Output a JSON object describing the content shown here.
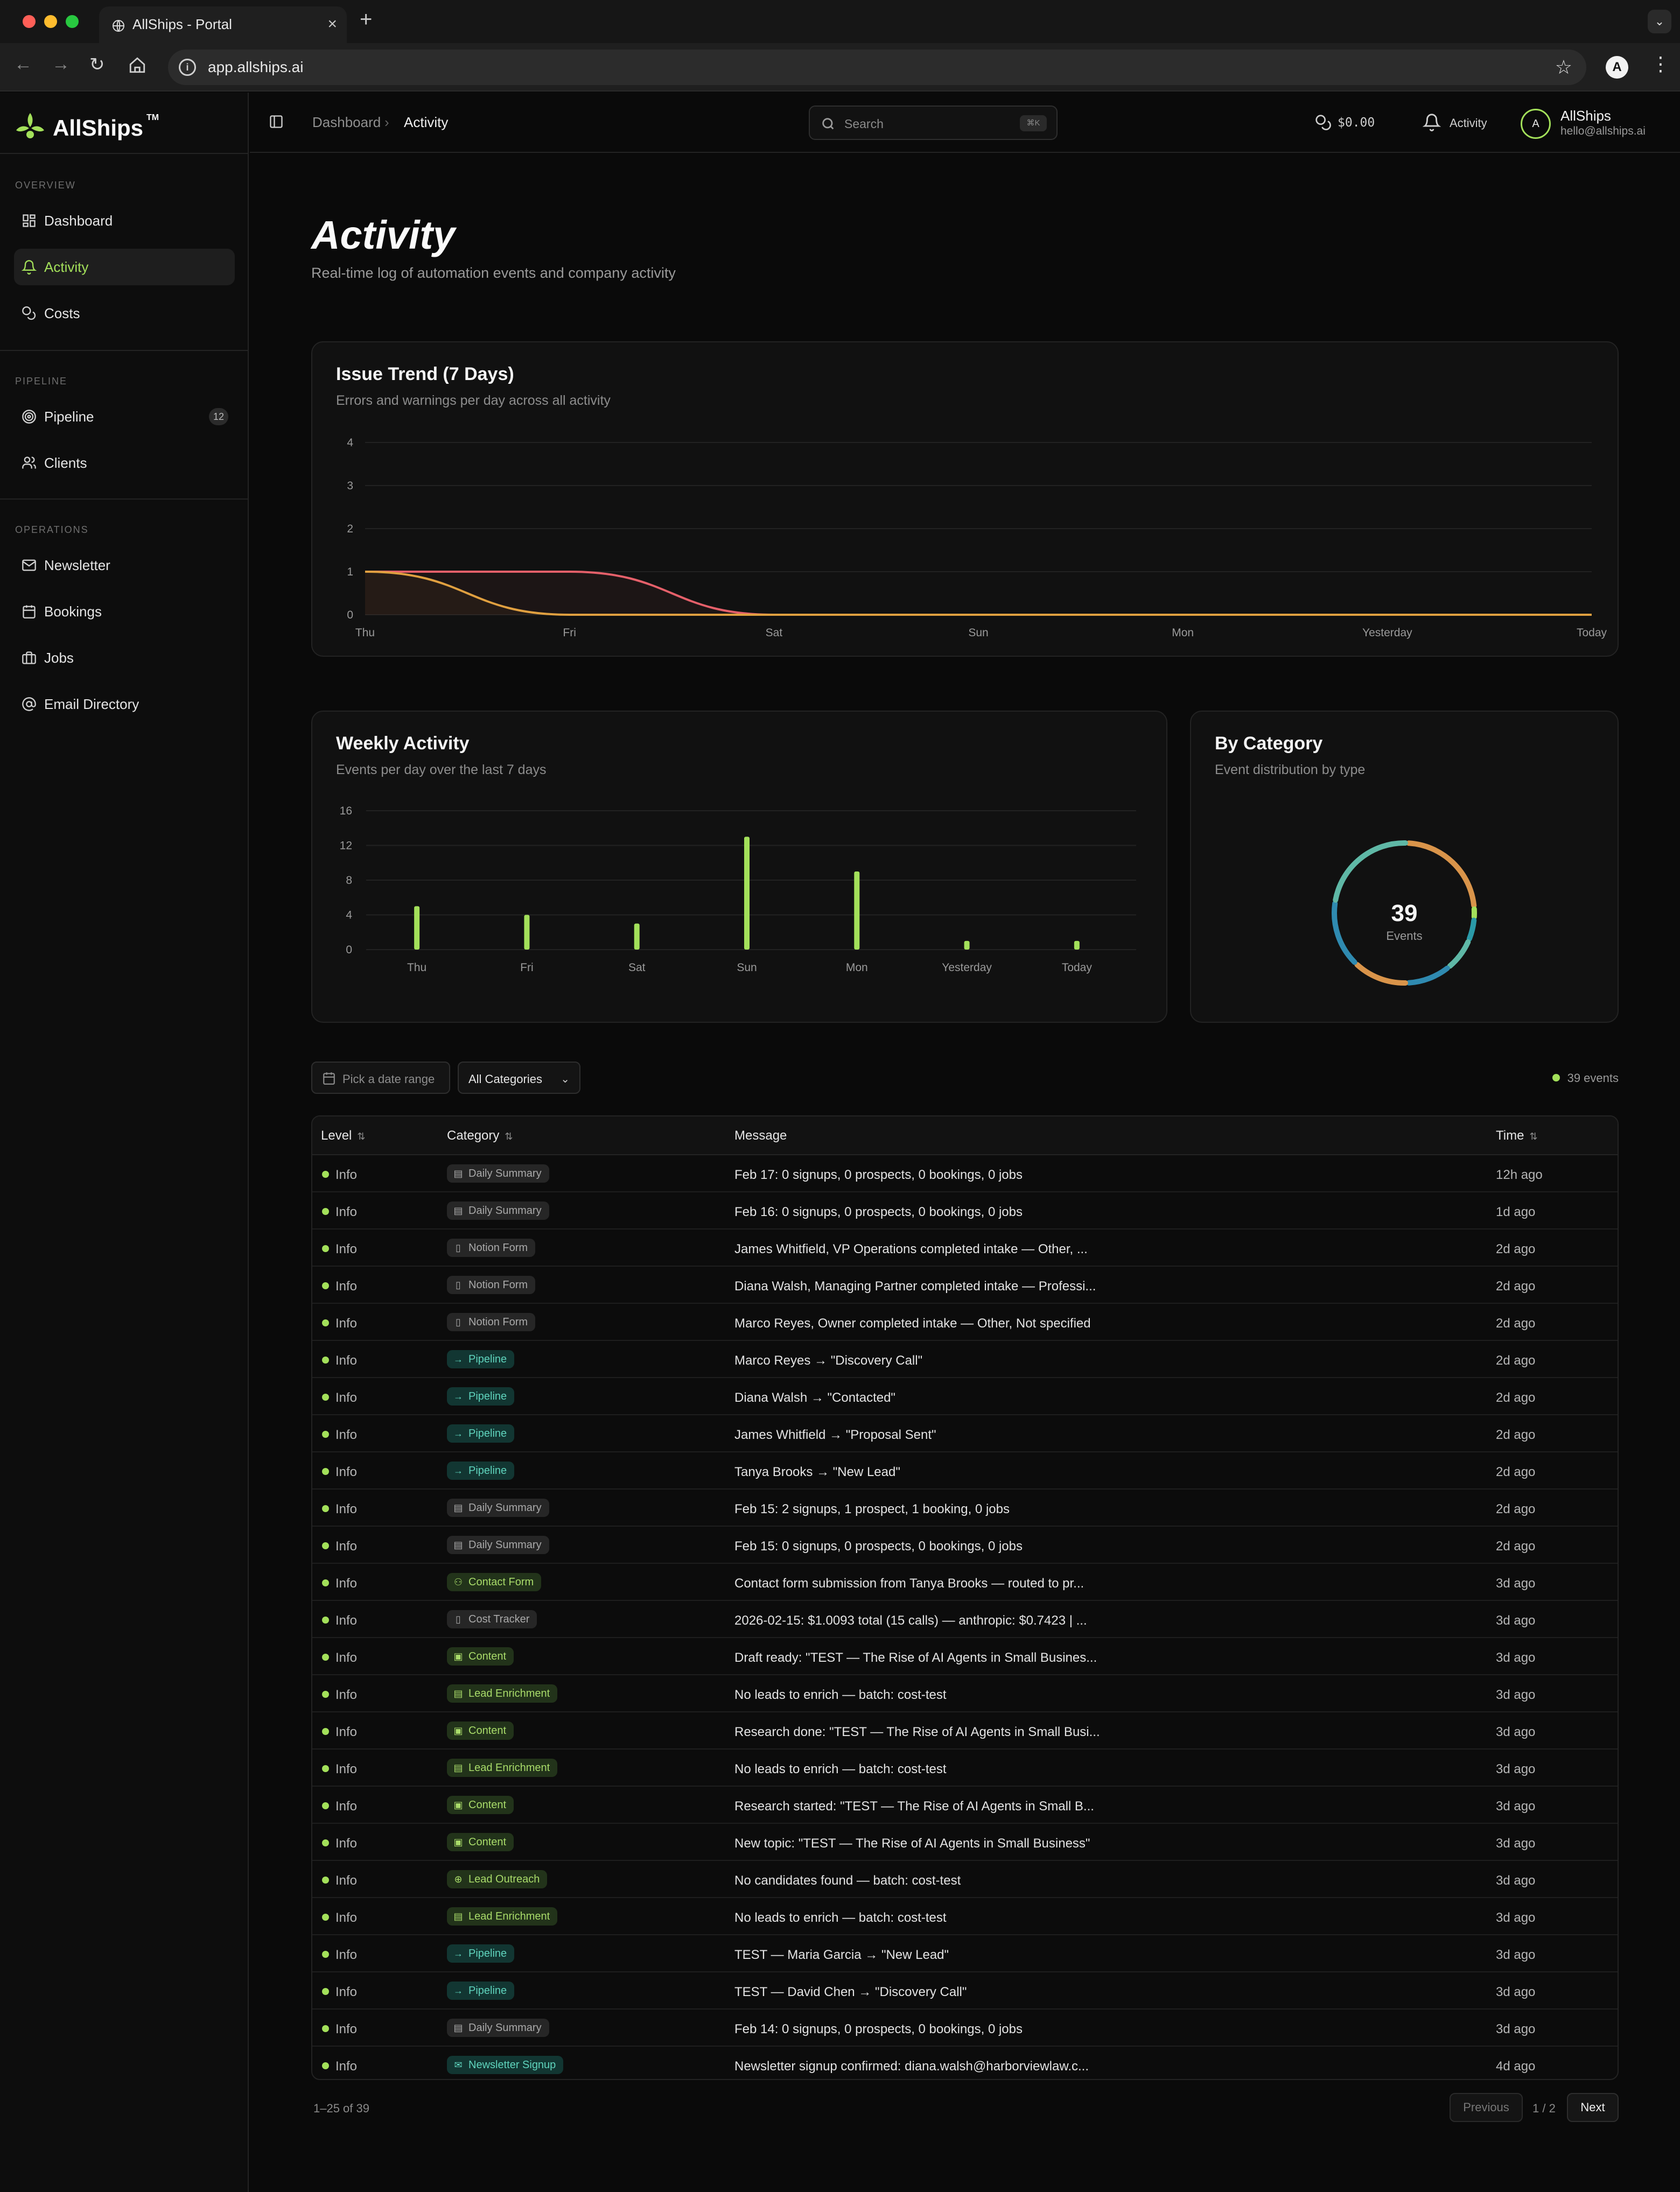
{
  "browser": {
    "tab_title": "AllShips - Portal",
    "url": "app.allships.ai",
    "new_tab_label": "+",
    "close_label": "×",
    "profile_initial": "A"
  },
  "brand": {
    "name": "AllShips",
    "tm": "TM"
  },
  "sidebar": {
    "sections": [
      {
        "label": "OVERVIEW",
        "items": [
          {
            "label": "Dashboard",
            "icon": "dashboard-icon",
            "active": false
          },
          {
            "label": "Activity",
            "icon": "bell-icon",
            "active": true
          },
          {
            "label": "Costs",
            "icon": "coins-icon",
            "active": false
          }
        ]
      },
      {
        "label": "PIPELINE",
        "items": [
          {
            "label": "Pipeline",
            "icon": "target-icon",
            "count": "12"
          },
          {
            "label": "Clients",
            "icon": "users-icon"
          }
        ]
      },
      {
        "label": "OPERATIONS",
        "items": [
          {
            "label": "Newsletter",
            "icon": "mail-icon"
          },
          {
            "label": "Bookings",
            "icon": "calendar-icon"
          },
          {
            "label": "Jobs",
            "icon": "briefcase-icon"
          },
          {
            "label": "Email Directory",
            "icon": "at-sign-icon"
          }
        ]
      }
    ]
  },
  "topbar": {
    "breadcrumb": [
      "Dashboard",
      "Activity"
    ],
    "breadcrumb_sep": "›",
    "search_placeholder": "Search",
    "search_shortcut": "⌘K",
    "cost": "$0.00",
    "activity_label": "Activity",
    "user_initial": "A",
    "user_name": "AllShips",
    "user_email": "hello@allships.ai"
  },
  "page": {
    "title": "Activity",
    "subtitle": "Real-time log of automation events and company activity"
  },
  "issue_trend": {
    "title": "Issue Trend (7 Days)",
    "subtitle": "Errors and warnings per day across all activity"
  },
  "weekly_activity": {
    "title": "Weekly Activity",
    "subtitle": "Events per day over the last 7 days"
  },
  "by_category": {
    "title": "By Category",
    "subtitle": "Event distribution by type",
    "total": "39",
    "total_label": "Events"
  },
  "chart_data": [
    {
      "type": "line",
      "title": "Issue Trend (7 Days)",
      "x": [
        "Thu",
        "Fri",
        "Sat",
        "Sun",
        "Mon",
        "Yesterday",
        "Today"
      ],
      "ylim": [
        0,
        4
      ],
      "yticks": [
        0,
        1,
        2,
        3,
        4
      ],
      "series": [
        {
          "values": [
            1,
            1,
            0,
            0,
            0,
            0,
            0
          ],
          "color": "#e5606a"
        },
        {
          "values": [
            1,
            0,
            0,
            0,
            0,
            0,
            0
          ],
          "color": "#e0a040"
        }
      ],
      "grid": true
    },
    {
      "type": "bar",
      "title": "Weekly Activity",
      "categories": [
        "Thu",
        "Fri",
        "Sat",
        "Sun",
        "Mon",
        "Yesterday",
        "Today"
      ],
      "values": [
        5,
        4,
        3,
        13,
        9,
        1,
        1
      ],
      "ylim": [
        0,
        16
      ],
      "yticks": [
        0,
        4,
        8,
        12,
        16
      ],
      "color": "#a3e05a",
      "grid": true
    },
    {
      "type": "pie",
      "title": "By Category",
      "center_value": "39",
      "center_label": "Events",
      "slices": [
        {
          "value": 9,
          "color": "#d9944a"
        },
        {
          "value": 1,
          "color": "#a3e05a"
        },
        {
          "value": 2,
          "color": "#2a9aa8"
        },
        {
          "value": 3,
          "color": "#5fb8a6"
        },
        {
          "value": 4,
          "color": "#2f8ab0"
        },
        {
          "value": 5,
          "color": "#d9944a"
        },
        {
          "value": 6,
          "color": "#2f8ab0"
        },
        {
          "value": 9,
          "color": "#5fb8a6"
        }
      ]
    }
  ],
  "filters": {
    "date_placeholder": "Pick a date range",
    "category": "All Categories",
    "event_count": "39 events"
  },
  "table": {
    "columns": [
      "Level",
      "Category",
      "Message",
      "Time"
    ],
    "rows": [
      {
        "level": "Info",
        "category": "Daily Summary",
        "style": "gray",
        "icon": "▤",
        "message": "Feb 17: 0 signups, 0 prospects, 0 bookings, 0 jobs",
        "time": "12h ago"
      },
      {
        "level": "Info",
        "category": "Daily Summary",
        "style": "gray",
        "icon": "▤",
        "message": "Feb 16: 0 signups, 0 prospects, 0 bookings, 0 jobs",
        "time": "1d ago"
      },
      {
        "level": "Info",
        "category": "Notion Form",
        "style": "gray",
        "icon": "▯",
        "message": "James Whitfield, VP Operations completed intake — Other, ...",
        "time": "2d ago"
      },
      {
        "level": "Info",
        "category": "Notion Form",
        "style": "gray",
        "icon": "▯",
        "message": "Diana Walsh, Managing Partner completed intake — Professi...",
        "time": "2d ago"
      },
      {
        "level": "Info",
        "category": "Notion Form",
        "style": "gray",
        "icon": "▯",
        "message": "Marco Reyes, Owner completed intake — Other, Not specified",
        "time": "2d ago"
      },
      {
        "level": "Info",
        "category": "Pipeline",
        "style": "teal",
        "icon": "→",
        "message": "Marco Reyes → \"Discovery Call\"",
        "time": "2d ago"
      },
      {
        "level": "Info",
        "category": "Pipeline",
        "style": "teal",
        "icon": "→",
        "message": "Diana Walsh → \"Contacted\"",
        "time": "2d ago"
      },
      {
        "level": "Info",
        "category": "Pipeline",
        "style": "teal",
        "icon": "→",
        "message": "James Whitfield → \"Proposal Sent\"",
        "time": "2d ago"
      },
      {
        "level": "Info",
        "category": "Pipeline",
        "style": "teal",
        "icon": "→",
        "message": "Tanya Brooks → \"New Lead\"",
        "time": "2d ago"
      },
      {
        "level": "Info",
        "category": "Daily Summary",
        "style": "gray",
        "icon": "▤",
        "message": "Feb 15: 2 signups, 1 prospect, 1 booking, 0 jobs",
        "time": "2d ago"
      },
      {
        "level": "Info",
        "category": "Daily Summary",
        "style": "gray",
        "icon": "▤",
        "message": "Feb 15: 0 signups, 0 prospects, 0 bookings, 0 jobs",
        "time": "2d ago"
      },
      {
        "level": "Info",
        "category": "Contact Form",
        "style": "green",
        "icon": "⚇",
        "message": "Contact form submission from Tanya Brooks — routed to pr...",
        "time": "3d ago"
      },
      {
        "level": "Info",
        "category": "Cost Tracker",
        "style": "gray",
        "icon": "▯",
        "message": "2026-02-15: $1.0093 total (15 calls) — anthropic: $0.7423 | ...",
        "time": "3d ago"
      },
      {
        "level": "Info",
        "category": "Content",
        "style": "green",
        "icon": "▣",
        "message": "Draft ready: \"TEST — The Rise of AI Agents in Small Busines...",
        "time": "3d ago"
      },
      {
        "level": "Info",
        "category": "Lead Enrichment",
        "style": "green",
        "icon": "▤",
        "message": "No leads to enrich — batch: cost-test",
        "time": "3d ago"
      },
      {
        "level": "Info",
        "category": "Content",
        "style": "green",
        "icon": "▣",
        "message": "Research done: \"TEST — The Rise of AI Agents in Small Busi...",
        "time": "3d ago"
      },
      {
        "level": "Info",
        "category": "Lead Enrichment",
        "style": "green",
        "icon": "▤",
        "message": "No leads to enrich — batch: cost-test",
        "time": "3d ago"
      },
      {
        "level": "Info",
        "category": "Content",
        "style": "green",
        "icon": "▣",
        "message": "Research started: \"TEST — The Rise of AI Agents in Small B...",
        "time": "3d ago"
      },
      {
        "level": "Info",
        "category": "Content",
        "style": "green",
        "icon": "▣",
        "message": "New topic: \"TEST — The Rise of AI Agents in Small Business\"",
        "time": "3d ago"
      },
      {
        "level": "Info",
        "category": "Lead Outreach",
        "style": "green",
        "icon": "⊕",
        "message": "No candidates found — batch: cost-test",
        "time": "3d ago"
      },
      {
        "level": "Info",
        "category": "Lead Enrichment",
        "style": "green",
        "icon": "▤",
        "message": "No leads to enrich — batch: cost-test",
        "time": "3d ago"
      },
      {
        "level": "Info",
        "category": "Pipeline",
        "style": "teal",
        "icon": "→",
        "message": "TEST — Maria Garcia → \"New Lead\"",
        "time": "3d ago"
      },
      {
        "level": "Info",
        "category": "Pipeline",
        "style": "teal",
        "icon": "→",
        "message": "TEST — David Chen → \"Discovery Call\"",
        "time": "3d ago"
      },
      {
        "level": "Info",
        "category": "Daily Summary",
        "style": "gray",
        "icon": "▤",
        "message": "Feb 14: 0 signups, 0 prospects, 0 bookings, 0 jobs",
        "time": "3d ago"
      },
      {
        "level": "Info",
        "category": "Newsletter Signup",
        "style": "teal",
        "icon": "✉",
        "message": "Newsletter signup confirmed: diana.walsh@harborviewlaw.c...",
        "time": "4d ago"
      }
    ]
  },
  "pagination": {
    "range": "1–25 of 39",
    "previous": "Previous",
    "page": "1 / 2",
    "next": "Next"
  }
}
